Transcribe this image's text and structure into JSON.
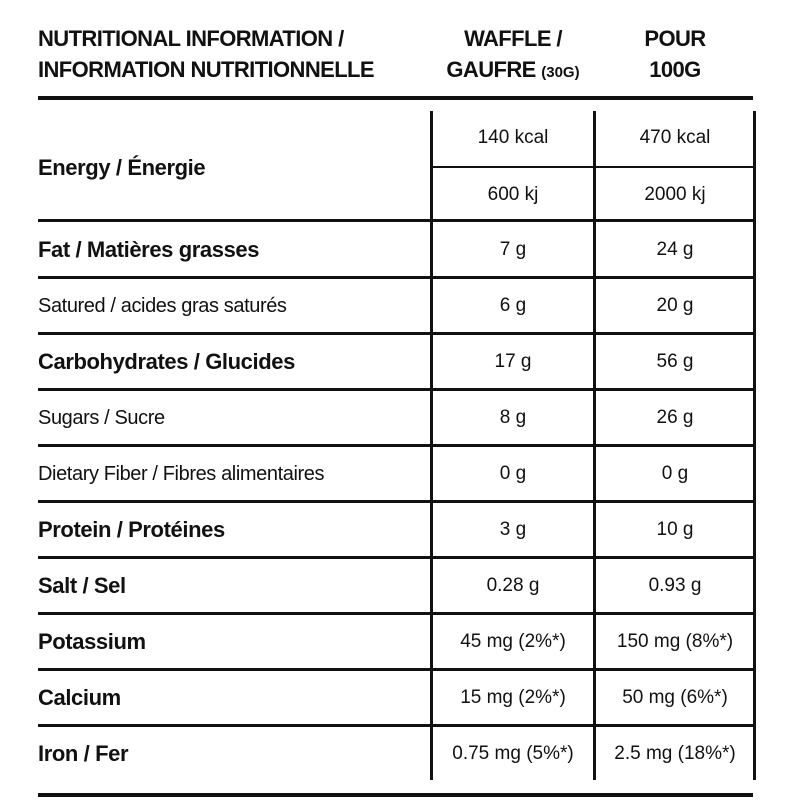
{
  "header": {
    "label_line1": "NUTRITIONAL INFORMATION /",
    "label_line2": "INFORMATION NUTRITIONNELLE",
    "col1_line1": "WAFFLE /",
    "col1_line2": "GAUFRE",
    "col1_portion": "(30G)",
    "col2_line1": "POUR",
    "col2_line2": "100G"
  },
  "energy": {
    "label": "Energy / Énergie",
    "kcal_waffle": "140 kcal",
    "kcal_100g": "470 kcal",
    "kj_waffle": "600 kj",
    "kj_100g": "2000 kj"
  },
  "rows": [
    {
      "label": "Fat / Matières grasses",
      "weight": "bold",
      "waffle": "7 g",
      "per100": "24 g"
    },
    {
      "label": "Satured / acides gras saturés",
      "weight": "normal",
      "waffle": "6 g",
      "per100": "20 g"
    },
    {
      "label": "Carbohydrates / Glucides",
      "weight": "bold",
      "waffle": "17 g",
      "per100": "56 g"
    },
    {
      "label": "Sugars / Sucre",
      "weight": "normal",
      "waffle": "8 g",
      "per100": "26 g"
    },
    {
      "label": "Dietary Fiber / Fibres alimentaires",
      "weight": "normal",
      "waffle": "0 g",
      "per100": "0 g"
    },
    {
      "label": "Protein / Protéines",
      "weight": "bold",
      "waffle": "3 g",
      "per100": "10 g"
    },
    {
      "label": "Salt / Sel",
      "weight": "bold",
      "waffle": "0.28 g",
      "per100": "0.93 g"
    },
    {
      "label": "Potassium",
      "weight": "bold",
      "waffle": "45 mg (2%*)",
      "per100": "150 mg (8%*)"
    },
    {
      "label": "Calcium",
      "weight": "bold",
      "waffle": "15 mg (2%*)",
      "per100": "50 mg (6%*)"
    },
    {
      "label": "Iron / Fer",
      "weight": "bold",
      "waffle": "0.75 mg (5%*)",
      "per100": "2.5 mg (18%*)"
    }
  ]
}
